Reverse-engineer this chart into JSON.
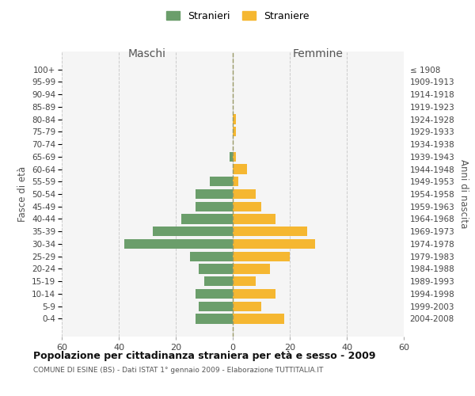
{
  "age_groups": [
    "100+",
    "95-99",
    "90-94",
    "85-89",
    "80-84",
    "75-79",
    "70-74",
    "65-69",
    "60-64",
    "55-59",
    "50-54",
    "45-49",
    "40-44",
    "35-39",
    "30-34",
    "25-29",
    "20-24",
    "15-19",
    "10-14",
    "5-9",
    "0-4"
  ],
  "birth_years": [
    "≤ 1908",
    "1909-1913",
    "1914-1918",
    "1919-1923",
    "1924-1928",
    "1929-1933",
    "1934-1938",
    "1939-1943",
    "1944-1948",
    "1949-1953",
    "1954-1958",
    "1959-1963",
    "1964-1968",
    "1969-1973",
    "1974-1978",
    "1979-1983",
    "1984-1988",
    "1989-1993",
    "1994-1998",
    "1999-2003",
    "2004-2008"
  ],
  "males": [
    0,
    0,
    0,
    0,
    0,
    0,
    0,
    1,
    0,
    8,
    13,
    13,
    18,
    28,
    38,
    15,
    12,
    10,
    13,
    12,
    13
  ],
  "females": [
    0,
    0,
    0,
    0,
    1,
    1,
    0,
    1,
    5,
    2,
    8,
    10,
    15,
    26,
    29,
    20,
    13,
    8,
    15,
    10,
    18
  ],
  "male_color": "#6b9e6b",
  "female_color": "#f5b731",
  "center_line_color": "#999966",
  "grid_color": "#cccccc",
  "bg_color": "#f5f5f5",
  "xlim": 60,
  "title": "Popolazione per cittadinanza straniera per età e sesso - 2009",
  "subtitle": "COMUNE DI ESINE (BS) - Dati ISTAT 1° gennaio 2009 - Elaborazione TUTTITALIA.IT",
  "ylabel_left": "Fasce di età",
  "ylabel_right": "Anni di nascita",
  "header_maschi": "Maschi",
  "header_femmine": "Femmine",
  "legend_stranieri": "Stranieri",
  "legend_straniere": "Straniere"
}
